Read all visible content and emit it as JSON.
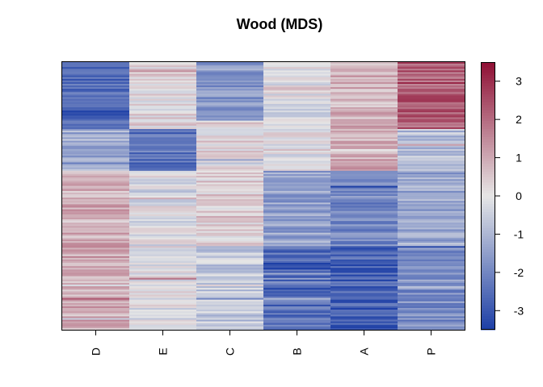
{
  "chart_data": {
    "type": "heatmap",
    "title": "Wood (MDS)",
    "xlabel": "",
    "ylabel": "",
    "columns": [
      "D",
      "E",
      "C",
      "B",
      "A",
      "P"
    ],
    "row_count": 160,
    "color_scale": {
      "min": -3.5,
      "max": 3.5,
      "ticks": [
        -3,
        -2,
        -1,
        0,
        1,
        2,
        3
      ],
      "low_color": "#1d3fa6",
      "mid_color": "#e6e6e6",
      "high_color": "#8f0f34"
    },
    "column_profiles": [
      {
        "column": "D",
        "segments": [
          {
            "rows": [
              0,
              40
            ],
            "value": -2.6
          },
          {
            "rows": [
              40,
              65
            ],
            "value": -1.2
          },
          {
            "rows": [
              65,
              160
            ],
            "value": 0.9
          }
        ]
      },
      {
        "column": "E",
        "segments": [
          {
            "rows": [
              0,
              40
            ],
            "value": 0.2
          },
          {
            "rows": [
              40,
              65
            ],
            "value": -2.4
          },
          {
            "rows": [
              65,
              160
            ],
            "value": -0.1
          }
        ]
      },
      {
        "column": "C",
        "segments": [
          {
            "rows": [
              0,
              35
            ],
            "value": -1.6
          },
          {
            "rows": [
              35,
              65
            ],
            "value": 0.3
          },
          {
            "rows": [
              65,
              110
            ],
            "value": 0.4
          },
          {
            "rows": [
              110,
              160
            ],
            "value": -0.6
          }
        ]
      },
      {
        "column": "B",
        "segments": [
          {
            "rows": [
              0,
              65
            ],
            "value": -0.1
          },
          {
            "rows": [
              65,
              110
            ],
            "value": -1.4
          },
          {
            "rows": [
              110,
              160
            ],
            "value": -2.5
          }
        ]
      },
      {
        "column": "A",
        "segments": [
          {
            "rows": [
              0,
              65
            ],
            "value": 0.9
          },
          {
            "rows": [
              65,
              110
            ],
            "value": -1.9
          },
          {
            "rows": [
              110,
              160
            ],
            "value": -2.8
          }
        ]
      },
      {
        "column": "P",
        "segments": [
          {
            "rows": [
              0,
              40
            ],
            "value": 2.2
          },
          {
            "rows": [
              40,
              65
            ],
            "value": -0.8
          },
          {
            "rows": [
              65,
              110
            ],
            "value": -1.3
          },
          {
            "rows": [
              110,
              160
            ],
            "value": -1.8
          }
        ]
      }
    ]
  }
}
